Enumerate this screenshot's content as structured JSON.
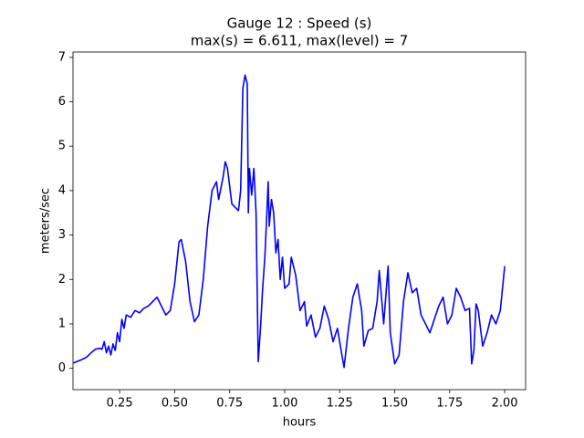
{
  "chart_data": {
    "type": "line",
    "title": "Gauge 12 : Speed (s)",
    "subtitle": "max(s) =   6.611,    max(level) = 7",
    "x_label": "hours",
    "y_label": "meters/sec",
    "xlim": [
      0.038,
      2.095
    ],
    "ylim": [
      -0.48,
      7.12
    ],
    "xticks": [
      0.25,
      {
        "value": 0.5,
        "label": "0.50"
      },
      0.75,
      {
        "value": 1,
        "label": "1.00"
      },
      1.25,
      {
        "value": 1.5,
        "label": "1.50"
      },
      1.75,
      {
        "value": 2,
        "label": "2.00"
      }
    ],
    "yticks": [
      0,
      1,
      2,
      3,
      4,
      5,
      6,
      7
    ],
    "x": [
      0.04,
      0.08,
      0.1,
      0.12,
      0.14,
      0.16,
      0.17,
      0.18,
      0.19,
      0.2,
      0.21,
      0.22,
      0.23,
      0.24,
      0.25,
      0.26,
      0.27,
      0.28,
      0.3,
      0.32,
      0.34,
      0.36,
      0.38,
      0.4,
      0.42,
      0.44,
      0.46,
      0.48,
      0.5,
      0.52,
      0.53,
      0.55,
      0.57,
      0.59,
      0.61,
      0.63,
      0.65,
      0.67,
      0.69,
      0.7,
      0.72,
      0.73,
      0.74,
      0.76,
      0.78,
      0.79,
      0.8,
      0.81,
      0.82,
      0.83,
      0.835,
      0.84,
      0.85,
      0.86,
      0.87,
      0.875,
      0.88,
      0.89,
      0.9,
      0.91,
      0.92,
      0.925,
      0.93,
      0.94,
      0.95,
      0.96,
      0.97,
      0.98,
      0.99,
      1.0,
      1.02,
      1.03,
      1.05,
      1.07,
      1.09,
      1.1,
      1.12,
      1.14,
      1.16,
      1.18,
      1.2,
      1.22,
      1.24,
      1.26,
      1.27,
      1.29,
      1.31,
      1.33,
      1.35,
      1.36,
      1.38,
      1.4,
      1.42,
      1.43,
      1.45,
      1.47,
      1.48,
      1.5,
      1.52,
      1.54,
      1.56,
      1.58,
      1.6,
      1.62,
      1.64,
      1.66,
      1.68,
      1.7,
      1.72,
      1.74,
      1.76,
      1.78,
      1.8,
      1.82,
      1.84,
      1.85,
      1.86,
      1.87,
      1.88,
      1.9,
      1.92,
      1.94,
      1.96,
      1.98,
      2.0
    ],
    "series": [
      {
        "name": "speed",
        "color": "#0000ff",
        "values": [
          0.12,
          0.2,
          0.25,
          0.35,
          0.43,
          0.45,
          0.43,
          0.6,
          0.35,
          0.5,
          0.3,
          0.55,
          0.4,
          0.8,
          0.6,
          1.1,
          0.9,
          1.2,
          1.15,
          1.3,
          1.25,
          1.35,
          1.4,
          1.5,
          1.6,
          1.4,
          1.2,
          1.3,
          1.9,
          2.85,
          2.9,
          2.4,
          1.5,
          1.05,
          1.2,
          2.0,
          3.2,
          4.0,
          4.2,
          3.8,
          4.3,
          4.65,
          4.5,
          3.7,
          3.6,
          3.55,
          4.0,
          6.3,
          6.6,
          6.4,
          3.5,
          4.5,
          3.9,
          4.5,
          3.5,
          1.8,
          0.15,
          0.9,
          1.8,
          2.5,
          3.6,
          4.2,
          3.2,
          3.8,
          3.5,
          2.6,
          2.9,
          2.0,
          2.5,
          1.8,
          1.9,
          2.5,
          2.1,
          1.3,
          1.5,
          0.95,
          1.2,
          0.7,
          0.9,
          1.4,
          1.1,
          0.6,
          0.9,
          0.3,
          0.02,
          0.9,
          1.6,
          1.9,
          1.3,
          0.5,
          0.85,
          0.9,
          1.5,
          2.2,
          1.0,
          2.3,
          0.8,
          0.1,
          0.3,
          1.5,
          2.15,
          1.7,
          1.8,
          1.2,
          1.0,
          0.8,
          1.1,
          1.4,
          1.6,
          1.0,
          1.2,
          1.8,
          1.6,
          1.3,
          1.35,
          0.1,
          0.4,
          1.45,
          1.3,
          0.5,
          0.8,
          1.2,
          1.0,
          1.3,
          2.3
        ]
      }
    ]
  }
}
